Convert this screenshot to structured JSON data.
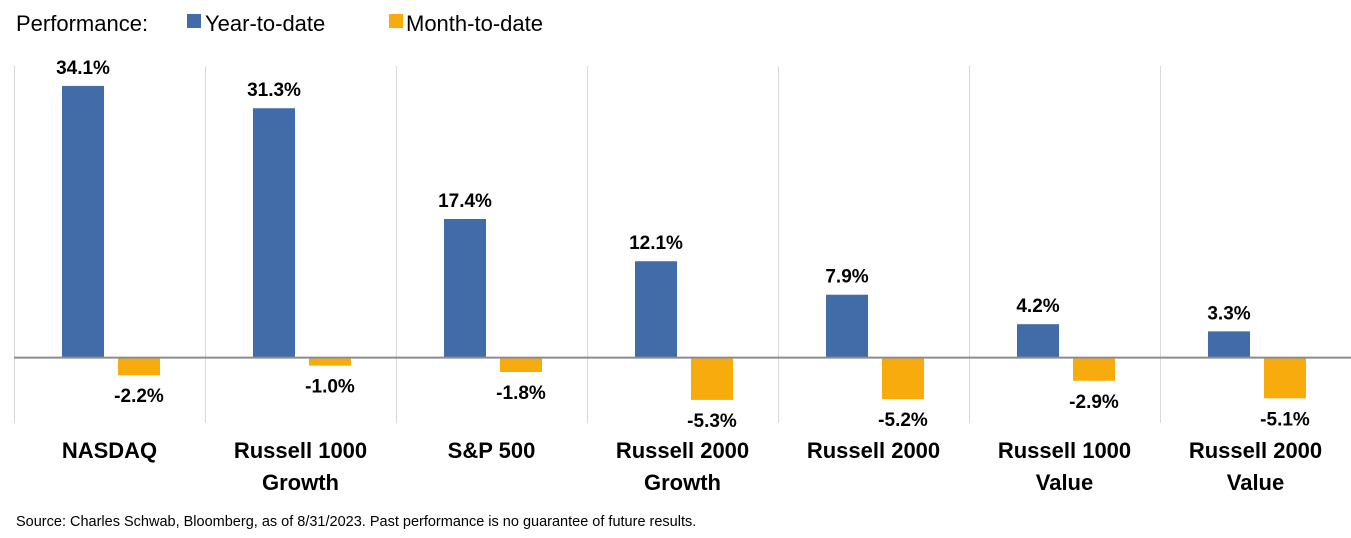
{
  "chart_data": {
    "type": "bar",
    "title": "Performance:",
    "categories": [
      [
        "NASDAQ"
      ],
      [
        "Russell 1000",
        "Growth"
      ],
      [
        "S&P 500"
      ],
      [
        "Russell 2000",
        "Growth"
      ],
      [
        "Russell 2000"
      ],
      [
        "Russell 1000",
        "Value"
      ],
      [
        "Russell 2000",
        "Value"
      ]
    ],
    "series": [
      {
        "name": "Year-to-date",
        "color": "#426CA8",
        "values": [
          34.1,
          31.3,
          17.4,
          12.1,
          7.9,
          4.2,
          3.3
        ],
        "labels": [
          "34.1%",
          "31.3%",
          "17.4%",
          "12.1%",
          "7.9%",
          "4.2%",
          "3.3%"
        ]
      },
      {
        "name": "Month-to-date",
        "color": "#F7AB0D",
        "values": [
          -2.2,
          -1.0,
          -1.8,
          -5.3,
          -5.2,
          -2.9,
          -5.1
        ],
        "labels": [
          "-2.2%",
          "-1.0%",
          "-1.8%",
          "-5.3%",
          "-5.2%",
          "-2.9%",
          "-5.1%"
        ]
      }
    ],
    "ylim": [
      -8.2,
      36.6
    ],
    "legend": "top-left",
    "grid": "vertical category separators",
    "source": "Source: Charles Schwab, Bloomberg, as of 8/31/2023.  Past performance is no guarantee of future results."
  }
}
